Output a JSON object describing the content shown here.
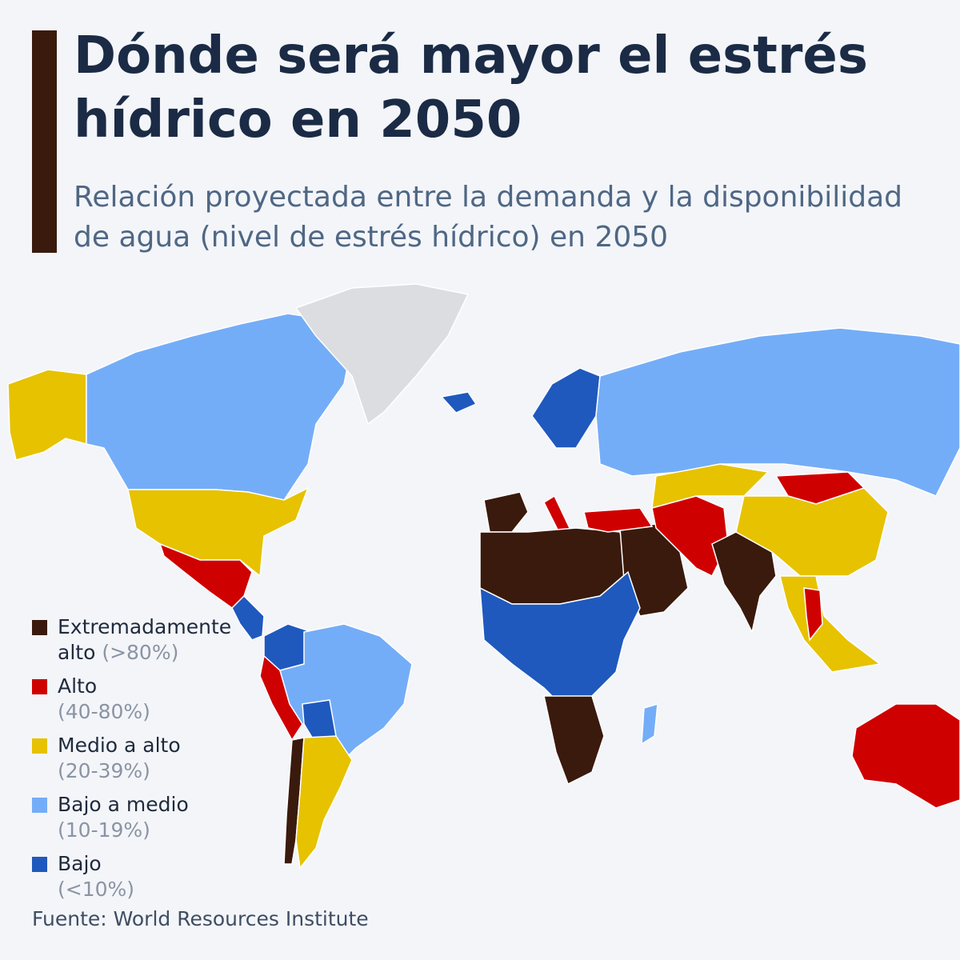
{
  "header": {
    "title": "Dónde será mayor el estrés hídrico en 2050",
    "subtitle_line1": "Relación proyectada entre la demanda y la disponibilidad",
    "subtitle_line2": "de agua (nivel de estrés hídrico) en 2050"
  },
  "legend": {
    "items": [
      {
        "label_line1": "Extremadamente",
        "label_line2": "alto",
        "range": "(>80%)",
        "color": "#3a1a0d"
      },
      {
        "label": "Alto",
        "range": "(40-80%)",
        "color": "#cf0000"
      },
      {
        "label": "Medio a alto",
        "range": "(20-39%)",
        "color": "#e6c200"
      },
      {
        "label": "Bajo a medio",
        "range": "(10-19%)",
        "color": "#74adf7"
      },
      {
        "label": "Bajo",
        "range": "(<10%)",
        "color": "#1f59bd"
      }
    ]
  },
  "colors": {
    "extremely_high": "#3a1a0d",
    "high": "#cf0000",
    "medium_high": "#e6c200",
    "low_medium": "#74adf7",
    "low": "#1f59bd",
    "no_data": "#dcdde0",
    "title": "#1b2b45",
    "background": "#f3f5f9"
  },
  "regions": [
    {
      "name": "Alaska",
      "level": "medium_high"
    },
    {
      "name": "Canadá",
      "level": "low_medium"
    },
    {
      "name": "Groenlandia",
      "level": "no_data"
    },
    {
      "name": "Estados Unidos",
      "level": "medium_high"
    },
    {
      "name": "México",
      "level": "high"
    },
    {
      "name": "Centroamérica",
      "level": "low"
    },
    {
      "name": "Colombia",
      "level": "low"
    },
    {
      "name": "Perú",
      "level": "high"
    },
    {
      "name": "Brasil",
      "level": "low_medium"
    },
    {
      "name": "Bolivia",
      "level": "low"
    },
    {
      "name": "Chile",
      "level": "extremely_high"
    },
    {
      "name": "Argentina",
      "level": "medium_high"
    },
    {
      "name": "Islandia",
      "level": "low"
    },
    {
      "name": "Escandinavia",
      "level": "low"
    },
    {
      "name": "Rusia",
      "level": "low_medium"
    },
    {
      "name": "España y Portugal",
      "level": "extremely_high"
    },
    {
      "name": "Italia",
      "level": "high"
    },
    {
      "name": "Norte de África",
      "level": "extremely_high"
    },
    {
      "name": "Península arábiga",
      "level": "extremely_high"
    },
    {
      "name": "Turquía",
      "level": "high"
    },
    {
      "name": "Irán y Pakistán",
      "level": "high"
    },
    {
      "name": "India",
      "level": "extremely_high"
    },
    {
      "name": "Kazajistán",
      "level": "medium_high"
    },
    {
      "name": "Mongolia",
      "level": "high"
    },
    {
      "name": "China",
      "level": "medium_high"
    },
    {
      "name": "Sudeste asiático",
      "level": "medium_high"
    },
    {
      "name": "Tailandia",
      "level": "high"
    },
    {
      "name": "África central",
      "level": "low"
    },
    {
      "name": "Sur de África",
      "level": "extremely_high"
    },
    {
      "name": "Madagascar",
      "level": "low_medium"
    },
    {
      "name": "Australia",
      "level": "high"
    }
  ],
  "source": "Fuente: World Resources Institute"
}
